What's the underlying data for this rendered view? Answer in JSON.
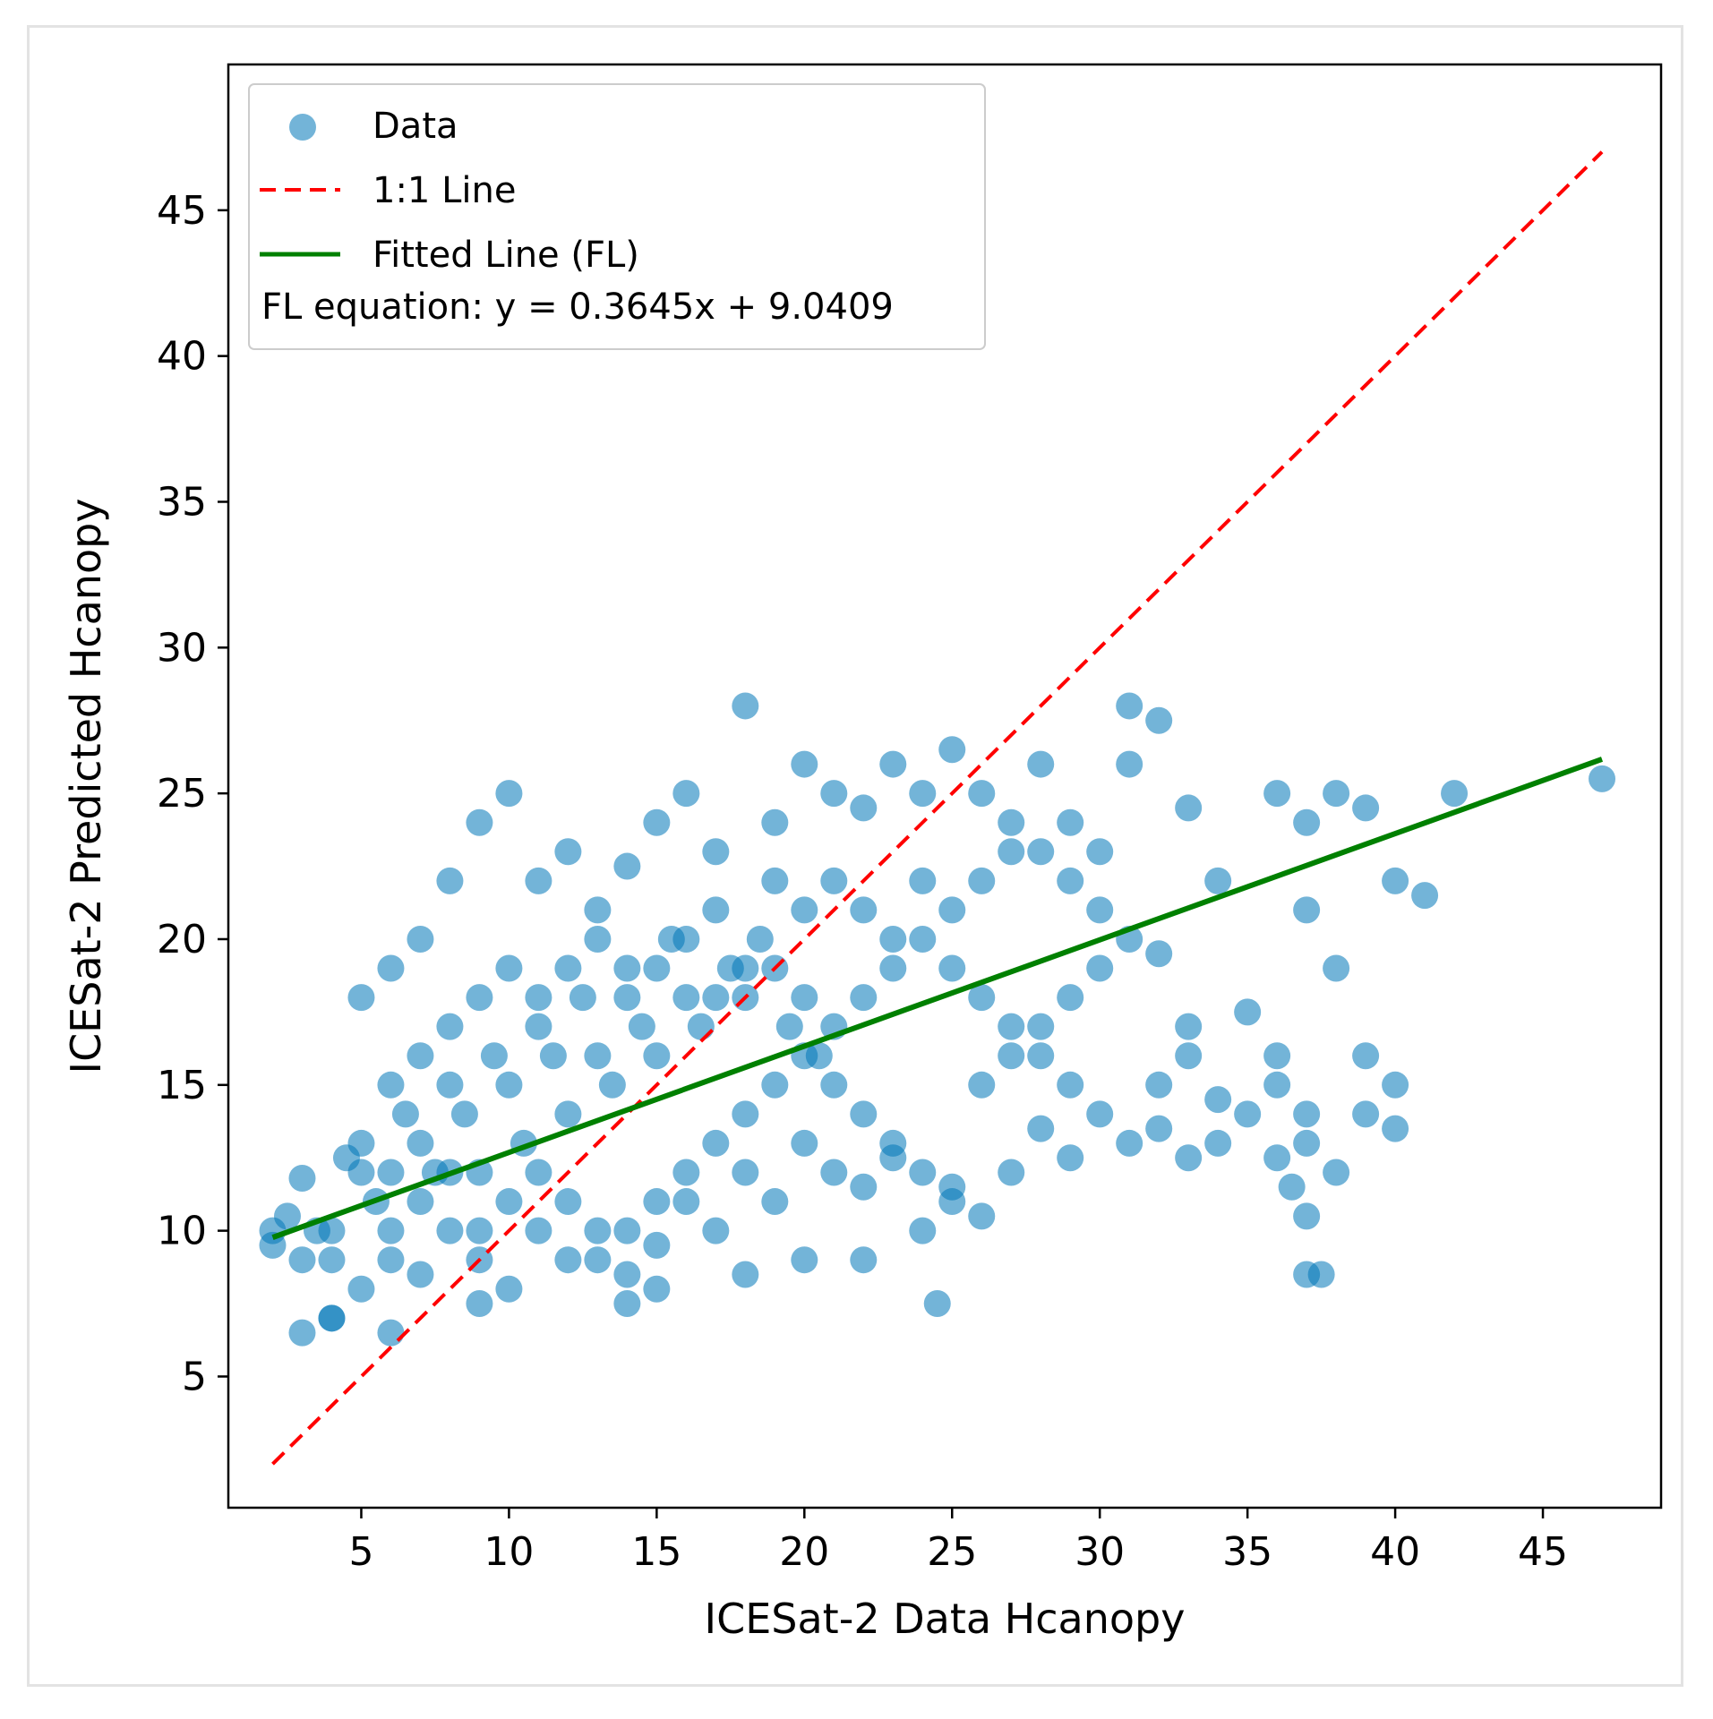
{
  "chart_data": {
    "type": "scatter",
    "xlabel": "ICESat-2 Data Hcanopy",
    "ylabel": "ICESat-2 Predicted Hcanopy",
    "xlim": [
      0.5,
      49
    ],
    "ylim": [
      0.5,
      50
    ],
    "xticks": [
      5,
      10,
      15,
      20,
      25,
      30,
      35,
      40,
      45
    ],
    "yticks": [
      5,
      10,
      15,
      20,
      25,
      30,
      35,
      40,
      45
    ],
    "grid": false,
    "legend_location": "upper-left",
    "point_color": "#0077b8",
    "series": [
      {
        "name": "Data",
        "type": "scatter",
        "points": [
          [
            2,
            9.5
          ],
          [
            2.5,
            10.5
          ],
          [
            3,
            11.8
          ],
          [
            3.5,
            10
          ],
          [
            4,
            9
          ],
          [
            4.5,
            12.5
          ],
          [
            5,
            13
          ],
          [
            5.5,
            11
          ],
          [
            6,
            12
          ],
          [
            6.5,
            14
          ],
          [
            7,
            13
          ],
          [
            7.5,
            12
          ],
          [
            8,
            15
          ],
          [
            8.5,
            14
          ],
          [
            9,
            12
          ],
          [
            9.5,
            16
          ],
          [
            10,
            15
          ],
          [
            10.5,
            13
          ],
          [
            11,
            17
          ],
          [
            11.5,
            16
          ],
          [
            12,
            14
          ],
          [
            12.5,
            18
          ],
          [
            13,
            16
          ],
          [
            13.5,
            15
          ],
          [
            14,
            19
          ],
          [
            14.5,
            17
          ],
          [
            15,
            16
          ],
          [
            15.5,
            20
          ],
          [
            16,
            18
          ],
          [
            16.5,
            17
          ],
          [
            17,
            21
          ],
          [
            17.5,
            19
          ],
          [
            18,
            18
          ],
          [
            18.5,
            20
          ],
          [
            19,
            19
          ],
          [
            19.5,
            17
          ],
          [
            20,
            18
          ],
          [
            20.5,
            16
          ],
          [
            21,
            15
          ],
          [
            22,
            14
          ],
          [
            23,
            13
          ],
          [
            24,
            12
          ],
          [
            25,
            11
          ],
          [
            4,
            7
          ],
          [
            5,
            8
          ],
          [
            6,
            9
          ],
          [
            7,
            8.5
          ],
          [
            8,
            10
          ],
          [
            9,
            9
          ],
          [
            10,
            8
          ],
          [
            11,
            10
          ],
          [
            12,
            9
          ],
          [
            13,
            10
          ],
          [
            14,
            8.5
          ],
          [
            15,
            9.5
          ],
          [
            16,
            11
          ],
          [
            17,
            10
          ],
          [
            18,
            12
          ],
          [
            19,
            11
          ],
          [
            20,
            13
          ],
          [
            21,
            12
          ],
          [
            22,
            11.5
          ],
          [
            23,
            12.5
          ],
          [
            5,
            18
          ],
          [
            6,
            19
          ],
          [
            7,
            20
          ],
          [
            8,
            22
          ],
          [
            9,
            24
          ],
          [
            10,
            25
          ],
          [
            11,
            22
          ],
          [
            12,
            23
          ],
          [
            13,
            21
          ],
          [
            14,
            22.5
          ],
          [
            15,
            24
          ],
          [
            16,
            25
          ],
          [
            17,
            23
          ],
          [
            18,
            28
          ],
          [
            19,
            24
          ],
          [
            20,
            26
          ],
          [
            21,
            25
          ],
          [
            22,
            24.5
          ],
          [
            23,
            26
          ],
          [
            24,
            25
          ],
          [
            25,
            26.5
          ],
          [
            26,
            25
          ],
          [
            27,
            24
          ],
          [
            28,
            23
          ],
          [
            29,
            22
          ],
          [
            30,
            21
          ],
          [
            31,
            28
          ],
          [
            32,
            27.5
          ],
          [
            33,
            24.5
          ],
          [
            34,
            22
          ],
          [
            36,
            25
          ],
          [
            37,
            24
          ],
          [
            38,
            25
          ],
          [
            39,
            24.5
          ],
          [
            42,
            25
          ],
          [
            47,
            25.5
          ],
          [
            40,
            22
          ],
          [
            41,
            21.5
          ],
          [
            37,
            21
          ],
          [
            38,
            19
          ],
          [
            33,
            17
          ],
          [
            35,
            17.5
          ],
          [
            36,
            16
          ],
          [
            39,
            16
          ],
          [
            40,
            13.5
          ],
          [
            37,
            14
          ],
          [
            34,
            14.5
          ],
          [
            32,
            13.5
          ],
          [
            33,
            12.5
          ],
          [
            36,
            12.5
          ],
          [
            36.5,
            11.5
          ],
          [
            37,
            10.5
          ],
          [
            37,
            8.5
          ],
          [
            37.5,
            8.5
          ],
          [
            26,
            10.5
          ],
          [
            27,
            12
          ],
          [
            28,
            13.5
          ],
          [
            29,
            12.5
          ],
          [
            24,
            10
          ],
          [
            25,
            11.5
          ],
          [
            24.5,
            7.5
          ],
          [
            22,
            9
          ],
          [
            20,
            9
          ],
          [
            18,
            8.5
          ],
          [
            15,
            8
          ],
          [
            14,
            7.5
          ],
          [
            9,
            7.5
          ],
          [
            3,
            6.5
          ],
          [
            4,
            7
          ],
          [
            6,
            6.5
          ],
          [
            26,
            15
          ],
          [
            27,
            16
          ],
          [
            28,
            17
          ],
          [
            29,
            18
          ],
          [
            30,
            19
          ],
          [
            31,
            20
          ],
          [
            32,
            19.5
          ],
          [
            30,
            23
          ],
          [
            29,
            24
          ],
          [
            31,
            26
          ],
          [
            28,
            26
          ],
          [
            27,
            23
          ],
          [
            26,
            22
          ],
          [
            25,
            21
          ],
          [
            24,
            20
          ],
          [
            23,
            19
          ],
          [
            22,
            18
          ],
          [
            21,
            17
          ],
          [
            20,
            16
          ],
          [
            19,
            15
          ],
          [
            18,
            14
          ],
          [
            17,
            13
          ],
          [
            16,
            12
          ],
          [
            15,
            11
          ],
          [
            14,
            10
          ],
          [
            13,
            9
          ],
          [
            12,
            11
          ],
          [
            11,
            12
          ],
          [
            10,
            11
          ],
          [
            9,
            10
          ],
          [
            8,
            12
          ],
          [
            7,
            11
          ],
          [
            6,
            10
          ],
          [
            5,
            12
          ],
          [
            4,
            10
          ],
          [
            3,
            9
          ],
          [
            2,
            10
          ],
          [
            6,
            15
          ],
          [
            7,
            16
          ],
          [
            8,
            17
          ],
          [
            9,
            18
          ],
          [
            10,
            19
          ],
          [
            11,
            18
          ],
          [
            12,
            19
          ],
          [
            13,
            20
          ],
          [
            14,
            18
          ],
          [
            15,
            19
          ],
          [
            16,
            20
          ],
          [
            17,
            18
          ],
          [
            18,
            19
          ],
          [
            19,
            22
          ],
          [
            20,
            21
          ],
          [
            21,
            22
          ],
          [
            22,
            21
          ],
          [
            23,
            20
          ],
          [
            24,
            22
          ],
          [
            25,
            19
          ],
          [
            26,
            18
          ],
          [
            27,
            17
          ],
          [
            28,
            16
          ],
          [
            29,
            15
          ],
          [
            30,
            14
          ],
          [
            31,
            13
          ],
          [
            32,
            15
          ],
          [
            33,
            16
          ],
          [
            34,
            13
          ],
          [
            35,
            14
          ],
          [
            36,
            15
          ],
          [
            37,
            13
          ],
          [
            38,
            12
          ],
          [
            39,
            14
          ],
          [
            40,
            15
          ]
        ]
      },
      {
        "name": "1:1 Line",
        "type": "line",
        "x": [
          2,
          47
        ],
        "y": [
          2,
          47
        ],
        "color": "#ff0000",
        "dash": "dashed"
      },
      {
        "name": "Fitted Line (FL)",
        "type": "line",
        "slope": 0.3645,
        "intercept": 9.0409,
        "x": [
          2,
          47
        ],
        "color": "#008000"
      }
    ],
    "legend": {
      "items": [
        {
          "label": "Data"
        },
        {
          "label": "1:1 Line"
        },
        {
          "label": "Fitted Line (FL)"
        }
      ],
      "equation_text": "FL equation: y = 0.3645x + 9.0409"
    }
  }
}
